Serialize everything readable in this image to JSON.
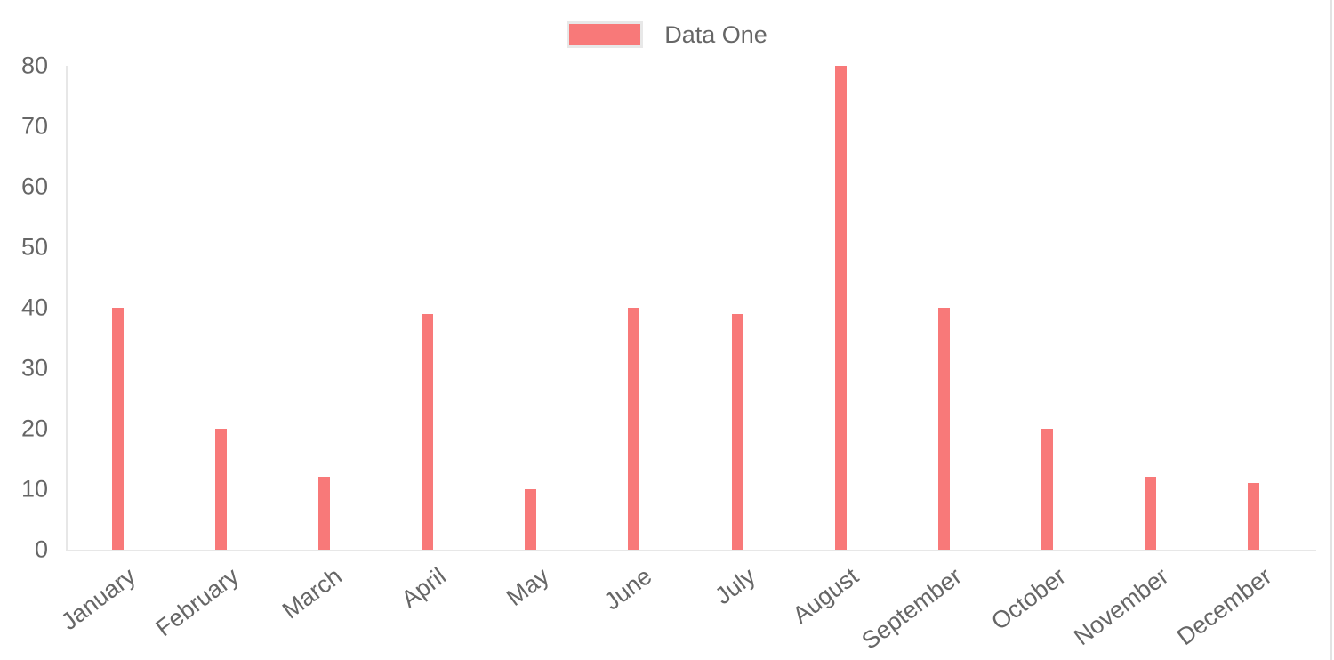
{
  "chart": {
    "legend_label": "Data One",
    "bar_color": "#f87979",
    "axis_line_color": "#e7e7e7",
    "label_color": "#666666",
    "legend_swatch_border_color": "#e8e8e8"
  },
  "chart_data": {
    "type": "bar",
    "title": "",
    "categories": [
      "January",
      "February",
      "March",
      "April",
      "May",
      "June",
      "July",
      "August",
      "September",
      "October",
      "November",
      "December"
    ],
    "series": [
      {
        "name": "Data One",
        "color": "#f87979",
        "values": [
          40,
          20,
          12,
          39,
          10,
          40,
          39,
          80,
          40,
          20,
          12,
          11
        ]
      }
    ],
    "xlabel": "",
    "ylabel": "",
    "ylim": [
      0,
      80
    ],
    "yticks": [
      0,
      10,
      20,
      30,
      40,
      50,
      60,
      70,
      80
    ],
    "grid": false,
    "legend_position": "top",
    "x_tick_rotation_deg": -37
  }
}
